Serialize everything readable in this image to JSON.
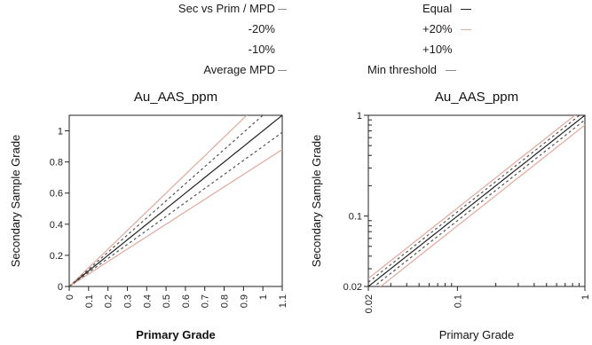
{
  "legend": {
    "items": [
      {
        "label": "Sec vs Prim / MPD",
        "color": "#8a8a8a"
      },
      {
        "label": "-20%",
        "color": "#e0b0a8"
      },
      {
        "label": "-10%",
        "color": "#8a8a8a"
      },
      {
        "label": "Average MPD",
        "color": "#8a8a8a"
      },
      {
        "label": "Equal",
        "color": "#222222"
      },
      {
        "label": "+20%",
        "color": "#e0b0a8"
      },
      {
        "label": "+10%",
        "color": "#8a8a8a"
      },
      {
        "label": "Min threshold",
        "color": "#8a8a8a"
      }
    ]
  },
  "chart_data": [
    {
      "type": "line",
      "title": "Au_AAS_ppm",
      "xlabel": "Primary Grade",
      "ylabel": "Secondary Sample Grade",
      "xlim": [
        0,
        1.1
      ],
      "ylim": [
        0,
        1.1
      ],
      "xticks": [
        0,
        0.1,
        0.2,
        0.3,
        0.4,
        0.5,
        0.6,
        0.7,
        0.8,
        0.9,
        1,
        1.1
      ],
      "xtick_labels": [
        "0",
        "0.1",
        "0.2",
        "0.3",
        "0.4",
        "0.5",
        "0.6",
        "0.7",
        "0.8",
        "0.9",
        "1",
        "1.1"
      ],
      "yticks": [
        0,
        0.2,
        0.4,
        0.6,
        0.8,
        1
      ],
      "ytick_labels": [
        "0",
        "0.2",
        "0.4",
        "0.6",
        "0.8",
        "1"
      ],
      "grid": false,
      "series": [
        {
          "name": "Equal",
          "slope": 1.0,
          "color": "#222222",
          "dash": "none"
        },
        {
          "name": "+20%",
          "slope": 1.2,
          "color": "#e3a89c",
          "dash": "none"
        },
        {
          "name": "-20%",
          "slope": 0.8,
          "color": "#e3a89c",
          "dash": "none"
        },
        {
          "name": "+10%",
          "slope": 1.1,
          "color": "#555555",
          "dash": "3,3"
        },
        {
          "name": "-10%",
          "slope": 0.9,
          "color": "#555555",
          "dash": "3,3"
        }
      ]
    },
    {
      "type": "line",
      "title": "Au_AAS_ppm",
      "xlabel": "Primary Grade",
      "ylabel": "Secondary Sample Grade",
      "log_scale": true,
      "xlim": [
        0.02,
        1
      ],
      "ylim": [
        0.02,
        1
      ],
      "xticks": [
        0.02,
        0.1,
        1
      ],
      "xtick_labels": [
        "0.02",
        "0.1",
        "1"
      ],
      "yticks": [
        0.02,
        0.1,
        1
      ],
      "ytick_labels": [
        "0.02",
        "0.1",
        "1"
      ],
      "grid": false,
      "series": [
        {
          "name": "Equal",
          "slope": 1.0,
          "color": "#222222",
          "dash": "none"
        },
        {
          "name": "+20%",
          "slope": 1.2,
          "color": "#e3a89c",
          "dash": "none"
        },
        {
          "name": "-20%",
          "slope": 0.8,
          "color": "#e3a89c",
          "dash": "none"
        },
        {
          "name": "+10%",
          "slope": 1.1,
          "color": "#555555",
          "dash": "3,3"
        },
        {
          "name": "-10%",
          "slope": 0.9,
          "color": "#555555",
          "dash": "3,3"
        }
      ]
    }
  ]
}
